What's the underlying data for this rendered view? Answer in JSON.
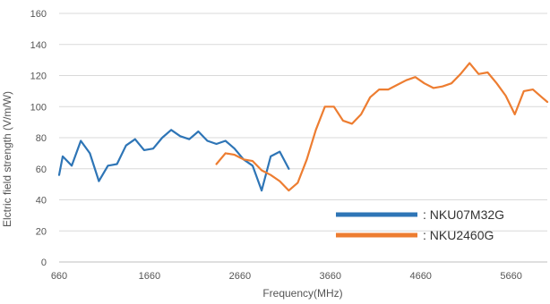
{
  "chart_data": {
    "type": "line",
    "title": "",
    "xlabel": "Frequency(MHz)",
    "ylabel": "Elctric field strength (V/m/W)",
    "xlim": [
      660,
      6060
    ],
    "ylim": [
      0,
      160
    ],
    "x_ticks": [
      660,
      1660,
      2660,
      3660,
      4660,
      5660
    ],
    "y_ticks": [
      0,
      20,
      40,
      60,
      80,
      100,
      120,
      140,
      160
    ],
    "grid": true,
    "legend_position": "bottom-right",
    "series": [
      {
        "name": "NKU07M32G",
        "color": "#2E75B6",
        "legend_text": ": NKU07M32G",
        "x": [
          660,
          700,
          800,
          900,
          1000,
          1100,
          1200,
          1300,
          1400,
          1500,
          1600,
          1700,
          1800,
          1900,
          2000,
          2100,
          2200,
          2300,
          2400,
          2500,
          2600,
          2700,
          2800,
          2900,
          3000,
          3100,
          3200
        ],
        "y": [
          56,
          68,
          62,
          78,
          70,
          52,
          62,
          63,
          75,
          79,
          72,
          73,
          80,
          85,
          81,
          79,
          84,
          78,
          76,
          78,
          73,
          66,
          62,
          46,
          68,
          71,
          60
        ]
      },
      {
        "name": "NKU2460G",
        "color": "#ED7D31",
        "legend_text": ": NKU2460G",
        "x": [
          2400,
          2500,
          2600,
          2700,
          2800,
          2900,
          3000,
          3100,
          3200,
          3300,
          3400,
          3500,
          3600,
          3700,
          3800,
          3900,
          4000,
          4100,
          4200,
          4300,
          4400,
          4500,
          4600,
          4700,
          4800,
          4900,
          5000,
          5100,
          5200,
          5300,
          5400,
          5500,
          5600,
          5700,
          5800,
          5900,
          6000,
          6060
        ],
        "y": [
          63,
          70,
          69,
          66,
          65,
          59,
          56,
          52,
          46,
          51,
          66,
          85,
          100,
          100,
          91,
          89,
          95,
          106,
          111,
          111,
          114,
          117,
          119,
          115,
          112,
          113,
          115,
          121,
          128,
          121,
          122,
          115,
          107,
          95,
          110,
          111,
          106,
          103
        ]
      }
    ]
  }
}
